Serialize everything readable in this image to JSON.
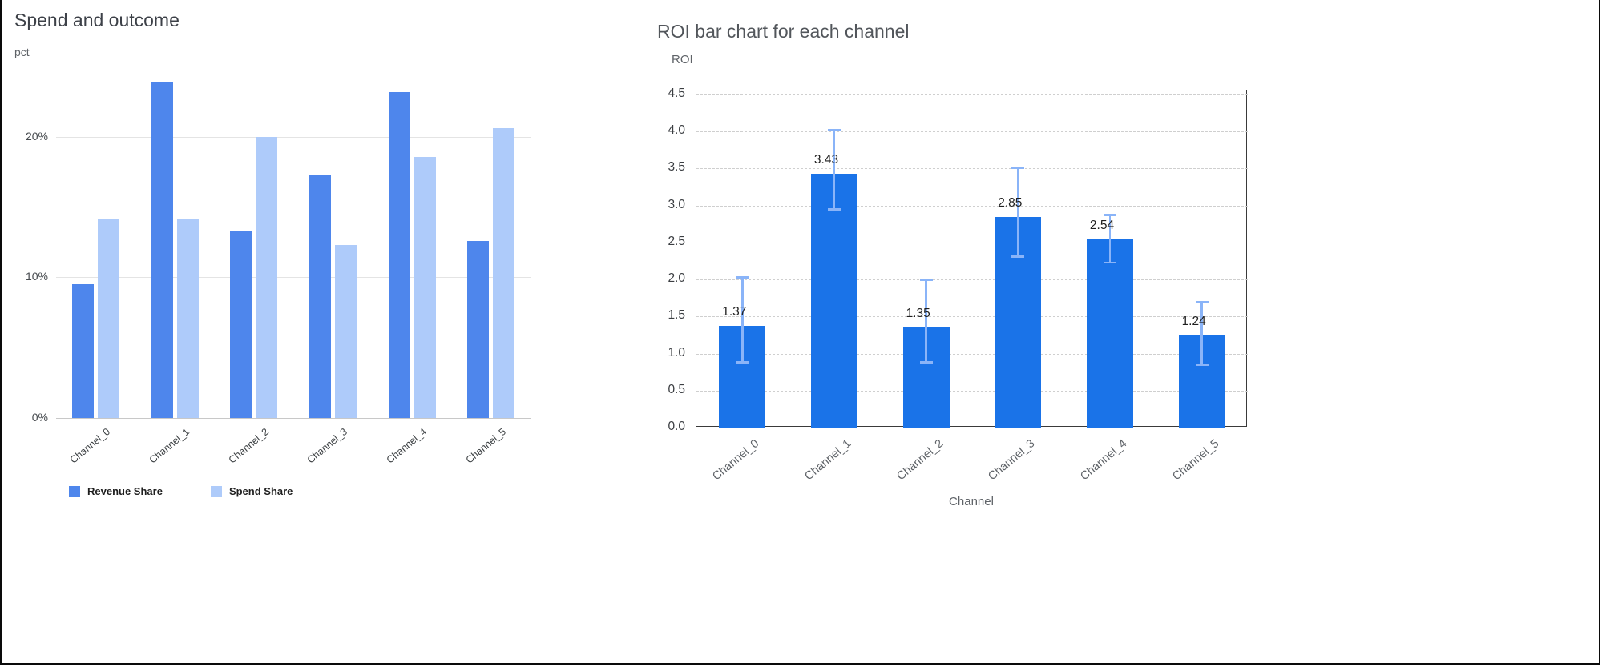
{
  "page": {
    "background": "#ffffff",
    "frame_color": "#000000"
  },
  "chart_data": [
    {
      "type": "bar",
      "title": "Spend and outcome",
      "ylabel": "pct",
      "xlabel": "",
      "categories": [
        "Channel_0",
        "Channel_1",
        "Channel_2",
        "Channel_3",
        "Channel_4",
        "Channel_5"
      ],
      "series": [
        {
          "name": "Revenue Share",
          "color": "#4e86ec",
          "values": [
            9.5,
            23.9,
            13.3,
            17.3,
            23.2,
            12.6
          ]
        },
        {
          "name": "Spend Share",
          "color": "#aecbfa",
          "values": [
            14.2,
            14.2,
            20.0,
            12.3,
            18.6,
            20.6
          ]
        }
      ],
      "yticks": [
        0,
        10,
        20
      ],
      "ytick_labels": [
        "0%",
        "10%",
        "20%"
      ],
      "ylim": [
        0,
        24.5
      ],
      "value_unit": "%",
      "grid": "solid",
      "legend_position": "bottom"
    },
    {
      "type": "bar",
      "title": "ROI bar chart for each channel",
      "xlabel": "Channel",
      "ylabel": "ROI",
      "categories": [
        "Channel_0",
        "Channel_1",
        "Channel_2",
        "Channel_3",
        "Channel_4",
        "Channel_5"
      ],
      "values": [
        1.37,
        3.43,
        1.35,
        2.85,
        2.54,
        1.24
      ],
      "value_labels": [
        "1.37",
        "3.43",
        "1.35",
        "2.85",
        "2.54",
        "1.24"
      ],
      "error_low": [
        0.88,
        2.95,
        0.88,
        2.31,
        2.23,
        0.85
      ],
      "error_high": [
        2.03,
        4.02,
        1.99,
        3.51,
        2.87,
        1.7
      ],
      "yticks": [
        0,
        0.5,
        1.0,
        1.5,
        2.0,
        2.5,
        3.0,
        3.5,
        4.0,
        4.5
      ],
      "ytick_labels": [
        "0.0",
        "0.5",
        "1.0",
        "1.5",
        "2.0",
        "2.5",
        "3.0",
        "3.5",
        "4.0",
        "4.5"
      ],
      "ylim": [
        0,
        4.5
      ],
      "bar_color": "#1a73e8",
      "error_color": "#8ab4f8",
      "grid": "dashed",
      "legend_position": "none"
    }
  ]
}
